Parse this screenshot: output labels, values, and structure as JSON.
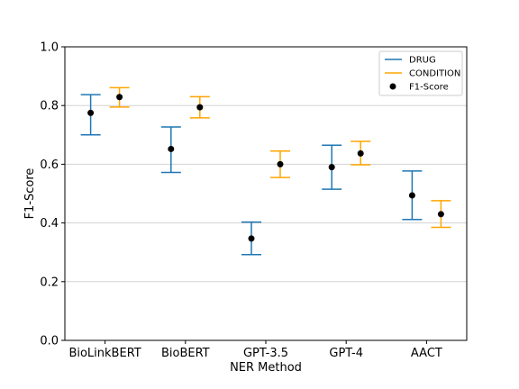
{
  "chart_data": {
    "type": "errorbar",
    "categories": [
      "BioLinkBERT",
      "BioBERT",
      "GPT-3.5",
      "GPT-4",
      "AACT"
    ],
    "xlabel": "NER Method",
    "ylabel": "F1-Score",
    "ylim": [
      0.0,
      1.0
    ],
    "yticks": [
      "0.0",
      "0.2",
      "0.4",
      "0.6",
      "0.8",
      "1.0"
    ],
    "grid": "horizontal",
    "legend_position": "top-right",
    "legend": {
      "drug": "DRUG",
      "condition": "CONDITION",
      "f1": "F1-Score"
    },
    "series": [
      {
        "name": "DRUG",
        "color": "#1f77b4",
        "values": [
          0.775,
          0.652,
          0.347,
          0.59,
          0.494
        ],
        "lower": [
          0.7,
          0.572,
          0.292,
          0.515,
          0.412
        ],
        "upper": [
          0.837,
          0.727,
          0.403,
          0.665,
          0.577
        ]
      },
      {
        "name": "CONDITION",
        "color": "#ffa500",
        "values": [
          0.829,
          0.794,
          0.6,
          0.637,
          0.43
        ],
        "lower": [
          0.795,
          0.758,
          0.555,
          0.598,
          0.385
        ],
        "upper": [
          0.861,
          0.83,
          0.645,
          0.678,
          0.476
        ]
      }
    ],
    "marker_color": "#000000"
  }
}
